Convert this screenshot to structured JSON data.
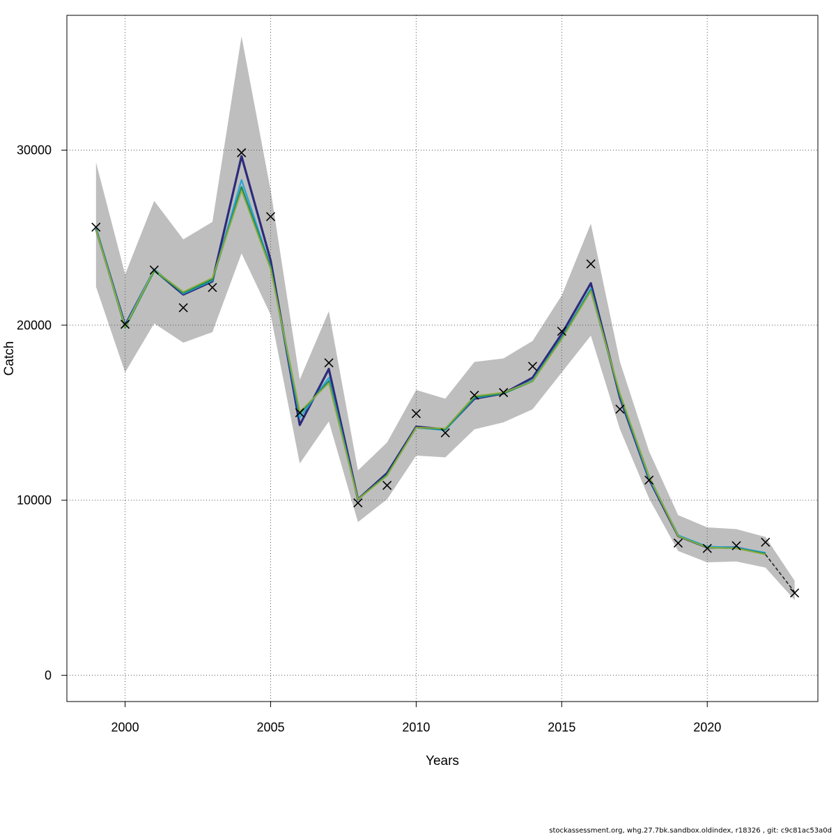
{
  "chart_data": {
    "type": "line",
    "xlabel": "Years",
    "ylabel": "Catch",
    "xlim": [
      1998,
      2023.8
    ],
    "ylim": [
      -1500,
      37700
    ],
    "x_ticks": [
      "2000",
      "2005",
      "2010",
      "2015",
      "2020"
    ],
    "y_ticks": [
      "0",
      "10000",
      "20000",
      "30000"
    ],
    "grid": true,
    "x": [
      1999,
      2000,
      2001,
      2002,
      2003,
      2004,
      2005,
      2006,
      2007,
      2008,
      2009,
      2010,
      2011,
      2012,
      2013,
      2014,
      2015,
      2016,
      2017,
      2018,
      2019,
      2020,
      2021,
      2022,
      2023
    ],
    "observed": [
      25600,
      20050,
      23150,
      21000,
      22150,
      29850,
      26200,
      15000,
      17850,
      9850,
      10850,
      14950,
      13850,
      16000,
      16150,
      17650,
      19650,
      23500,
      15200,
      11150,
      7550,
      7250,
      7400,
      7600,
      4700
    ],
    "confidence_band": {
      "lower": [
        22200,
        17300,
        20100,
        19000,
        19600,
        24100,
        20600,
        12100,
        14500,
        8750,
        10050,
        12550,
        12450,
        14050,
        14450,
        15200,
        17300,
        19400,
        14050,
        10100,
        7100,
        6450,
        6500,
        6150,
        4300
      ],
      "upper": [
        29300,
        22900,
        27100,
        24900,
        25900,
        36500,
        27700,
        16900,
        20800,
        11700,
        13300,
        16300,
        15800,
        17900,
        18100,
        19100,
        21700,
        25800,
        17900,
        12800,
        9150,
        8450,
        8350,
        7900,
        5400
      ]
    },
    "series": [
      {
        "color": "#2d2a7a",
        "width": 3.2,
        "values": [
          25500,
          20000,
          23150,
          21750,
          22500,
          29650,
          23700,
          14300,
          17500,
          10050,
          11550,
          14200,
          14050,
          15800,
          16100,
          17000,
          19500,
          22400,
          15850,
          11200,
          7950,
          7300,
          7300,
          6950,
          null
        ]
      },
      {
        "color": "#26a5d6",
        "width": 2.2,
        "values": [
          25550,
          19950,
          23200,
          21800,
          22550,
          28300,
          23350,
          14700,
          17000,
          10050,
          11450,
          14150,
          14000,
          15850,
          16100,
          16850,
          19300,
          22100,
          15950,
          11250,
          8000,
          7350,
          7300,
          7000,
          null
        ]
      },
      {
        "color": "#178a5e",
        "width": 2.4,
        "values": [
          25500,
          19850,
          23100,
          21850,
          22600,
          27900,
          23300,
          14950,
          16800,
          10050,
          11450,
          14150,
          14050,
          15900,
          16100,
          16800,
          19250,
          22000,
          16000,
          11350,
          7950,
          7300,
          7250,
          6950,
          null
        ]
      },
      {
        "color": "#8cab3c",
        "width": 2.0,
        "values": [
          25450,
          19900,
          23150,
          21900,
          22700,
          27700,
          23200,
          15050,
          16700,
          10050,
          11400,
          14150,
          14100,
          15950,
          16150,
          16800,
          19200,
          21950,
          16100,
          11350,
          7950,
          7300,
          7250,
          6900,
          null
        ]
      },
      {
        "color": "#222222",
        "width": 1.6,
        "dashed": true,
        "values": [
          null,
          null,
          null,
          null,
          null,
          null,
          null,
          null,
          null,
          null,
          null,
          null,
          null,
          null,
          null,
          null,
          null,
          null,
          null,
          null,
          null,
          null,
          null,
          6900,
          4750
        ]
      }
    ]
  },
  "footer": "stockassessment.org, whg.27.7bk.sandbox.oldindex, r18326 , git: c9c81ac53a0d"
}
